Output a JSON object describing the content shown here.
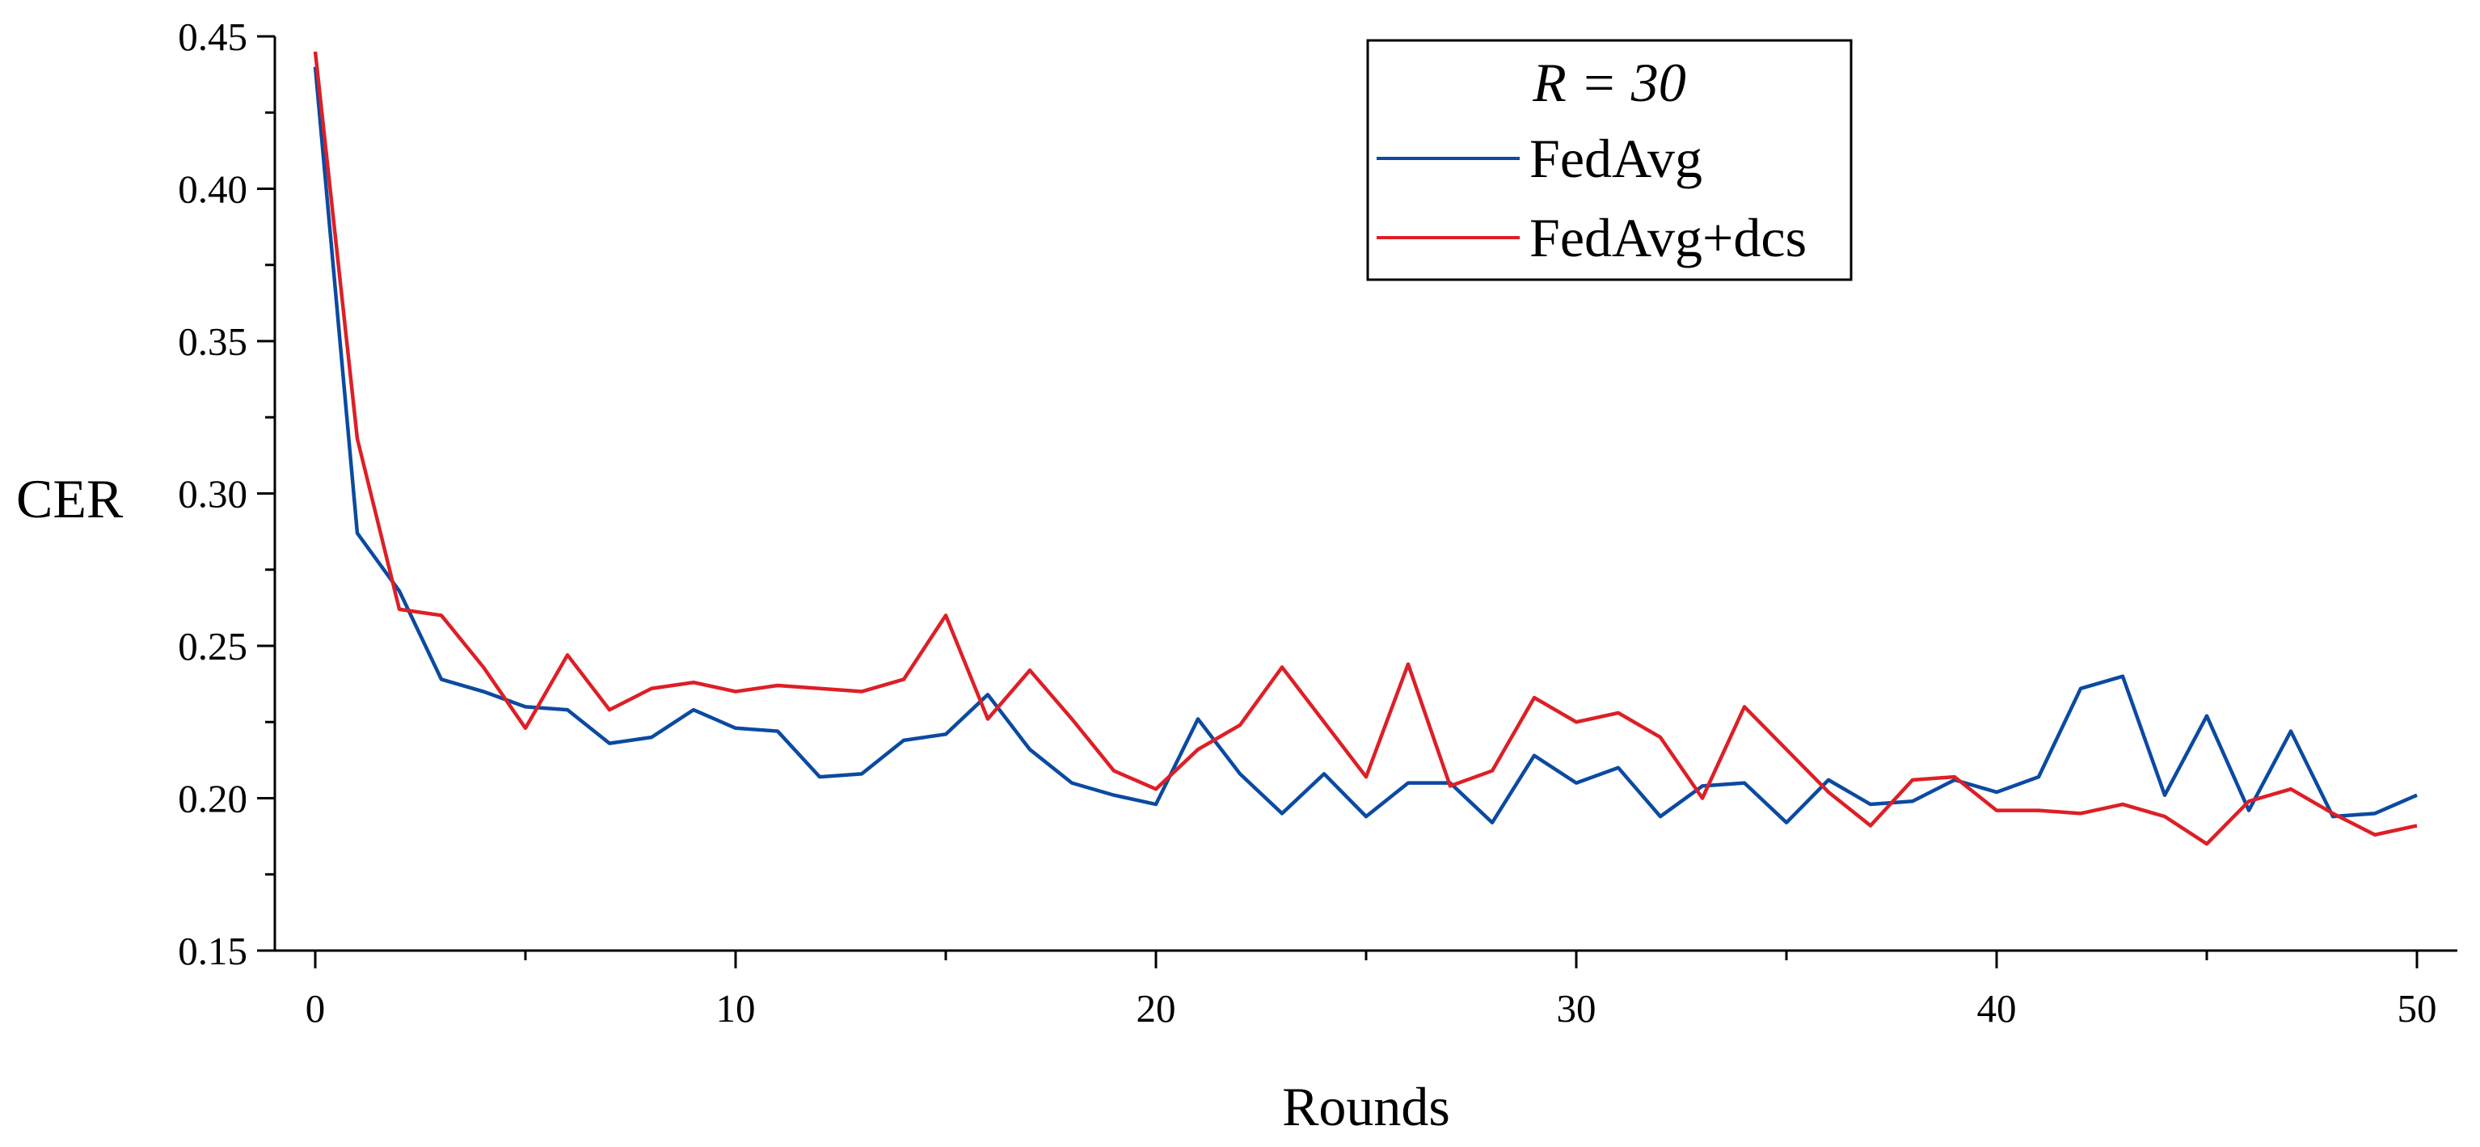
{
  "chart_data": {
    "type": "line",
    "title": "",
    "xlabel": "Rounds",
    "ylabel": "CER",
    "xlim": [
      -1,
      51
    ],
    "ylim": [
      0.15,
      0.45
    ],
    "x_ticks": [
      0,
      10,
      20,
      30,
      40,
      50
    ],
    "x_tick_labels": [
      "0",
      "10",
      "20",
      "30",
      "40",
      "50"
    ],
    "y_ticks": [
      0.15,
      0.2,
      0.25,
      0.3,
      0.35,
      0.4,
      0.45
    ],
    "y_tick_labels": [
      "0.15",
      "0.20",
      "0.25",
      "0.30",
      "0.35",
      "0.40",
      "0.45"
    ],
    "grid": false,
    "legend": {
      "title": "R = 30",
      "position": "top-right"
    },
    "x": [
      0,
      1,
      2,
      3,
      4,
      5,
      6,
      7,
      8,
      9,
      10,
      11,
      12,
      13,
      14,
      15,
      16,
      17,
      18,
      19,
      20,
      21,
      22,
      23,
      24,
      25,
      26,
      27,
      28,
      29,
      30,
      31,
      32,
      33,
      34,
      35,
      36,
      37,
      38,
      39,
      40,
      41,
      42,
      43,
      44,
      45,
      46,
      47,
      48,
      49,
      50
    ],
    "series": [
      {
        "name": "FedAvg",
        "color": "#0b4aa1",
        "values": [
          0.44,
          0.287,
          0.268,
          0.239,
          0.235,
          0.23,
          0.229,
          0.218,
          0.22,
          0.229,
          0.223,
          0.222,
          0.207,
          0.208,
          0.219,
          0.221,
          0.234,
          0.216,
          0.205,
          0.201,
          0.198,
          0.226,
          0.208,
          0.195,
          0.208,
          0.194,
          0.205,
          0.205,
          0.192,
          0.214,
          0.205,
          0.21,
          0.194,
          0.204,
          0.205,
          0.192,
          0.206,
          0.198,
          0.199,
          0.206,
          0.202,
          0.207,
          0.236,
          0.24,
          0.201,
          0.227,
          0.196,
          0.222,
          0.194,
          0.195,
          0.201
        ]
      },
      {
        "name": "FedAvg+dcs",
        "color": "#dd1f26",
        "values": [
          0.445,
          0.318,
          0.262,
          0.26,
          0.243,
          0.223,
          0.247,
          0.229,
          0.236,
          0.238,
          0.235,
          0.237,
          0.236,
          0.235,
          0.239,
          0.26,
          0.226,
          0.242,
          0.226,
          0.209,
          0.203,
          0.216,
          0.224,
          0.243,
          0.225,
          0.207,
          0.244,
          0.204,
          0.209,
          0.233,
          0.225,
          0.228,
          0.22,
          0.2,
          0.23,
          0.216,
          0.202,
          0.191,
          0.206,
          0.207,
          0.196,
          0.196,
          0.195,
          0.198,
          0.194,
          0.185,
          0.199,
          0.203,
          0.195,
          0.188,
          0.191
        ]
      }
    ]
  }
}
